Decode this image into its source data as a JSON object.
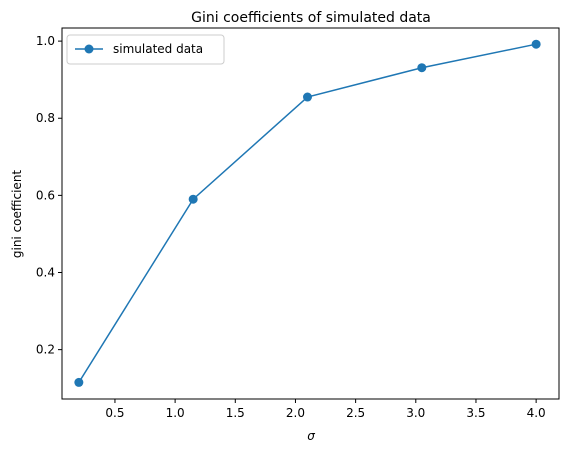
{
  "chart_data": {
    "type": "line",
    "title": "Gini coefficients of simulated data",
    "xlabel": "σ",
    "ylabel": "gini coefficient",
    "xlim": [
      0.06,
      4.19
    ],
    "ylim": [
      0.072,
      1.034
    ],
    "xticks": [
      0.5,
      1.0,
      1.5,
      2.0,
      2.5,
      3.0,
      3.5,
      4.0
    ],
    "xtick_labels": [
      "0.5",
      "1.0",
      "1.5",
      "2.0",
      "2.5",
      "3.0",
      "3.5",
      "4.0"
    ],
    "yticks": [
      0.2,
      0.4,
      0.6,
      0.8,
      1.0
    ],
    "ytick_labels": [
      "0.2",
      "0.4",
      "0.6",
      "0.8",
      "1.0"
    ],
    "grid": false,
    "legend_position": "top-left",
    "series": [
      {
        "name": "simulated data",
        "color": "#1f77b4",
        "marker": "circle",
        "x": [
          0.2,
          1.15,
          2.1,
          3.05,
          4.0
        ],
        "y": [
          0.115,
          0.59,
          0.855,
          0.931,
          0.992
        ]
      }
    ]
  }
}
